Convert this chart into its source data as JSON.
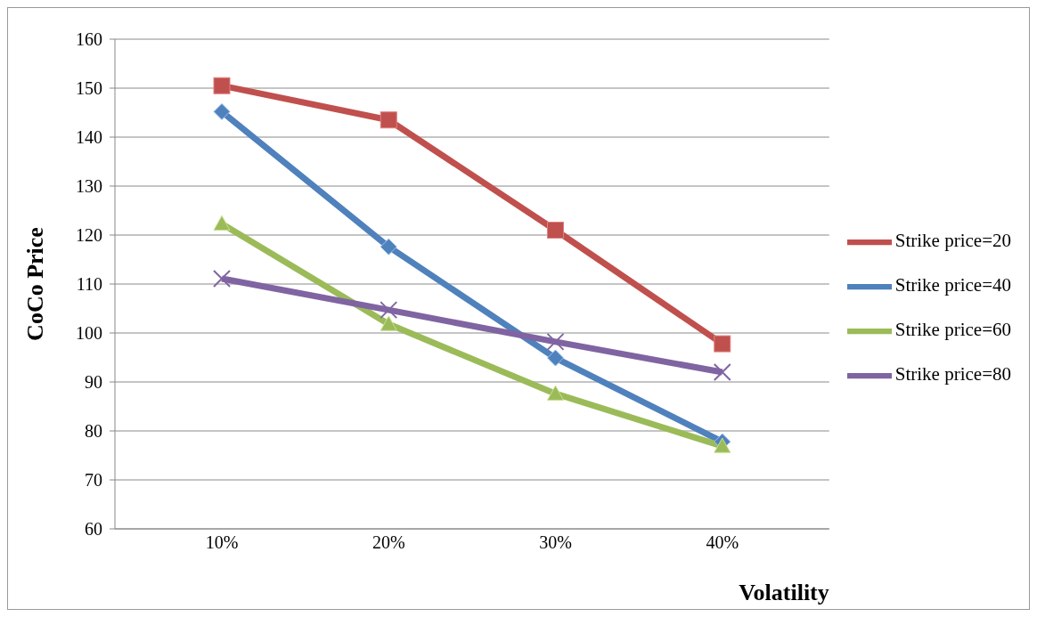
{
  "chart_data": {
    "type": "line",
    "xlabel": "Volatility",
    "ylabel": "CoCo Price",
    "categories": [
      "10%",
      "20%",
      "30%",
      "40%"
    ],
    "series": [
      {
        "name": "Strike price=20",
        "color": "#c0504d",
        "marker": "square",
        "values": [
          150.5,
          143.5,
          121,
          97.8
        ]
      },
      {
        "name": "Strike price=40",
        "color": "#4f81bd",
        "marker": "diamond",
        "values": [
          145.2,
          117.6,
          94.9,
          77.8
        ]
      },
      {
        "name": "Strike price=60",
        "color": "#9bbb59",
        "marker": "triangle",
        "values": [
          122.3,
          101.8,
          87.6,
          76.9
        ]
      },
      {
        "name": "Strike price=80",
        "color": "#8064a2",
        "marker": "cross",
        "values": [
          111.1,
          104.7,
          98.2,
          92
        ]
      }
    ],
    "ylim": [
      60,
      160
    ],
    "yticks": [
      60,
      70,
      80,
      90,
      100,
      110,
      120,
      130,
      140,
      150,
      160
    ],
    "grid": "y",
    "legend": "right"
  }
}
